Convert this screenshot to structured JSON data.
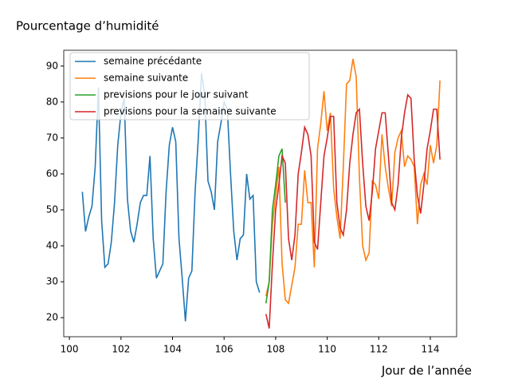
{
  "chart_data": {
    "type": "line",
    "title": "Pourcentage d’humidité",
    "x_label": "Jour de l’année",
    "xlim": [
      99.78,
      115.02
    ],
    "ylim": [
      14.7,
      94.4
    ],
    "xticks": [
      100,
      102,
      104,
      106,
      108,
      110,
      112,
      114
    ],
    "yticks": [
      20,
      30,
      40,
      50,
      60,
      70,
      80,
      90
    ],
    "legend": "upper left",
    "series": [
      {
        "name": "semaine précédante",
        "color": "#1f77b4",
        "x": [
          100.5,
          100.625,
          100.75,
          100.875,
          101,
          101.125,
          101.25,
          101.375,
          101.5,
          101.625,
          101.75,
          101.875,
          102,
          102.125,
          102.25,
          102.375,
          102.5,
          102.625,
          102.75,
          102.875,
          103,
          103.125,
          103.25,
          103.375,
          103.5,
          103.625,
          103.75,
          103.875,
          104,
          104.125,
          104.25,
          104.375,
          104.5,
          104.625,
          104.75,
          104.875,
          105,
          105.125,
          105.25,
          105.375,
          105.5,
          105.625,
          105.75,
          105.875,
          106,
          106.125,
          106.25,
          106.375,
          106.5,
          106.625,
          106.75,
          106.875,
          107,
          107.125,
          107.25,
          107.375
        ],
        "values": [
          55,
          44,
          48,
          51,
          62,
          84,
          47,
          34,
          35,
          41,
          52,
          68,
          77,
          81,
          53,
          44,
          41,
          46,
          52,
          54,
          54,
          65,
          42,
          31,
          33,
          35,
          55,
          68,
          73,
          69,
          42,
          31,
          19,
          31,
          33,
          55,
          70,
          88,
          82,
          58,
          55,
          50,
          69,
          74,
          80,
          78,
          60,
          44,
          36,
          42,
          43,
          60,
          53,
          54,
          30,
          27
        ]
      },
      {
        "name": "semaine suivante",
        "color": "#ff7f0e",
        "x": [
          107.625,
          107.75,
          107.875,
          108,
          108.125,
          108.25,
          108.375,
          108.5,
          108.625,
          108.75,
          108.875,
          109,
          109.125,
          109.25,
          109.375,
          109.5,
          109.625,
          109.75,
          109.875,
          110,
          110.125,
          110.25,
          110.375,
          110.5,
          110.625,
          110.75,
          110.875,
          111,
          111.125,
          111.25,
          111.375,
          111.5,
          111.625,
          111.75,
          111.875,
          112,
          112.125,
          112.25,
          112.375,
          112.5,
          112.625,
          112.75,
          112.875,
          113,
          113.125,
          113.25,
          113.375,
          113.5,
          113.625,
          113.75,
          113.875,
          114,
          114.125,
          114.25,
          114.375
        ],
        "values": [
          26,
          30,
          46,
          54,
          62,
          35,
          25,
          24,
          29,
          34,
          46,
          46,
          61,
          52,
          52,
          34,
          67,
          74,
          83,
          72,
          77,
          56,
          48,
          42,
          62,
          85,
          86,
          92,
          87,
          59,
          40,
          36,
          38,
          58,
          57,
          53,
          71,
          62,
          56,
          51,
          66,
          70,
          72,
          62,
          65,
          64,
          62,
          46,
          57,
          60,
          57,
          68,
          63,
          68,
          86
        ]
      },
      {
        "name": "previsions pour le jour suivant",
        "color": "#2ca02c",
        "x": [
          107.625,
          107.75,
          107.875,
          108,
          108.125,
          108.25,
          108.375
        ],
        "values": [
          24,
          30,
          50,
          57,
          65,
          67,
          52
        ]
      },
      {
        "name": "previsions pour la semaine suivante",
        "color": "#d62728",
        "x": [
          107.625,
          107.75,
          107.875,
          108,
          108.125,
          108.25,
          108.375,
          108.5,
          108.625,
          108.75,
          108.875,
          109,
          109.125,
          109.25,
          109.375,
          109.5,
          109.625,
          109.75,
          109.875,
          110,
          110.125,
          110.25,
          110.375,
          110.5,
          110.625,
          110.75,
          110.875,
          111,
          111.125,
          111.25,
          111.375,
          111.5,
          111.625,
          111.75,
          111.875,
          112,
          112.125,
          112.25,
          112.375,
          112.5,
          112.625,
          112.75,
          112.875,
          113,
          113.125,
          113.25,
          113.375,
          113.5,
          113.625,
          113.75,
          113.875,
          114,
          114.125,
          114.25,
          114.375
        ],
        "values": [
          21,
          17,
          35,
          50,
          57,
          65,
          63,
          42,
          36,
          43,
          60,
          66,
          73,
          71,
          65,
          41,
          39,
          52,
          65,
          70,
          76,
          76,
          52,
          45,
          43,
          50,
          63,
          71,
          77,
          78,
          63,
          51,
          47,
          55,
          67,
          72,
          77,
          77,
          65,
          52,
          50,
          57,
          70,
          77,
          82,
          81,
          64,
          54,
          49,
          57,
          67,
          72,
          78,
          78,
          64
        ]
      }
    ]
  }
}
